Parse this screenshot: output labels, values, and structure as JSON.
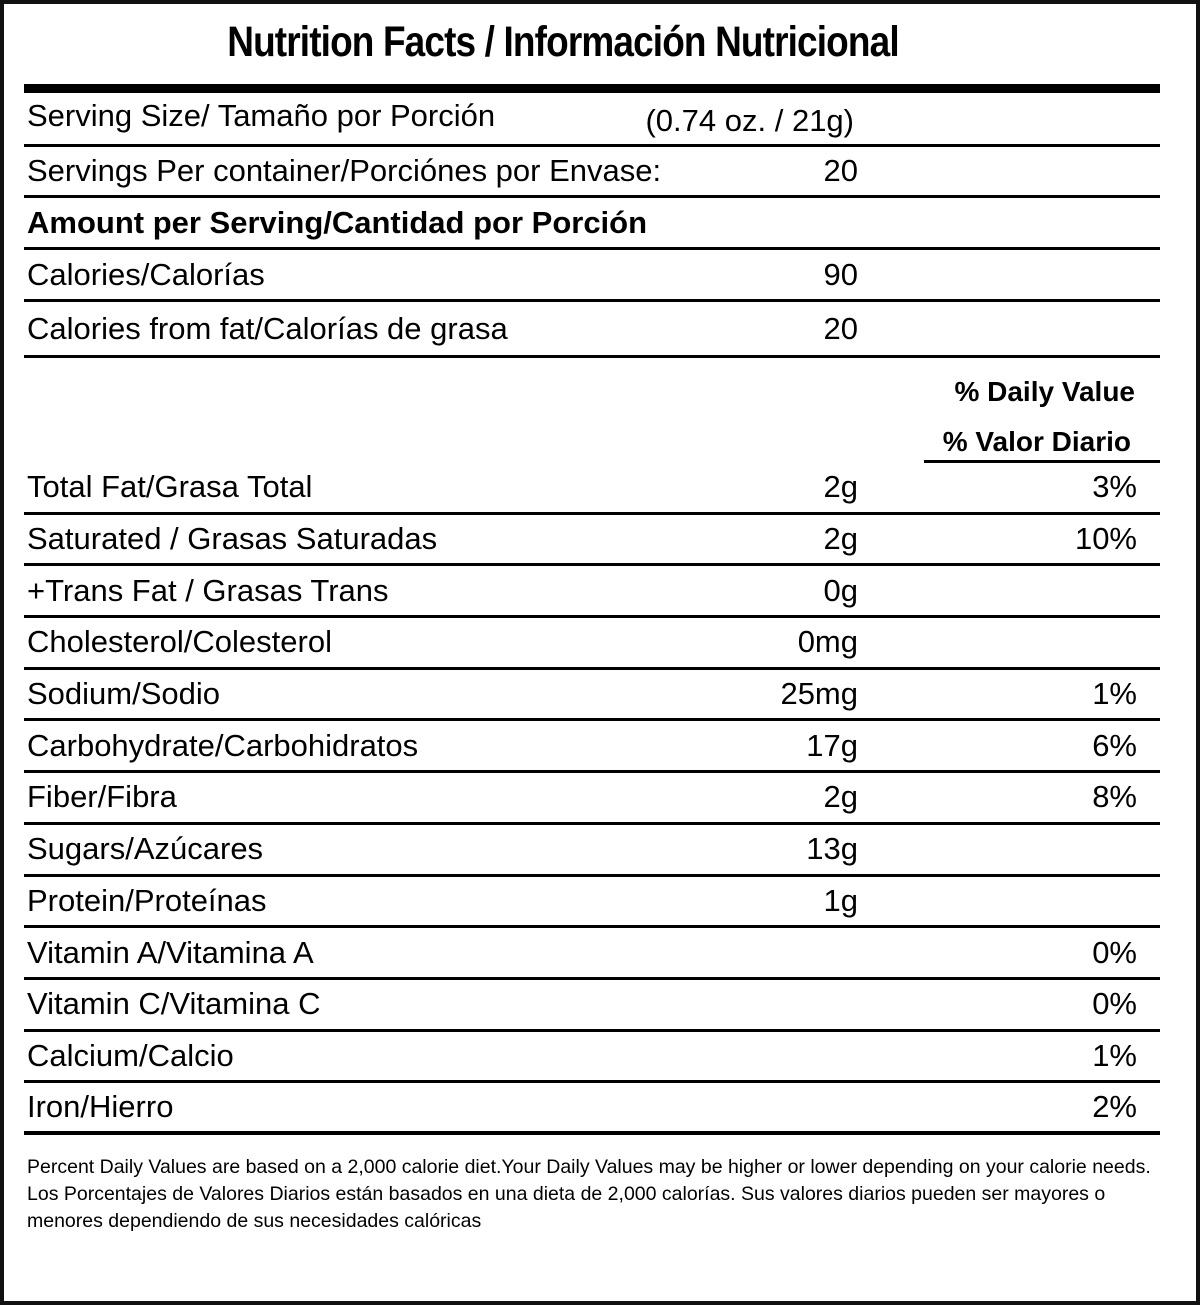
{
  "title": "Nutrition Facts / Información Nutricional",
  "serving_size": {
    "label": "Serving Size/ Tamaño por Porción",
    "value": "(0.74 oz. / 21g)"
  },
  "servings_per_container": {
    "label": "Servings Per container/Porciónes por Envase:",
    "value": "20"
  },
  "amount_per_serving": "Amount per Serving/Cantidad por Porción",
  "calories": {
    "label": "Calories/Calorías",
    "value": "90"
  },
  "calories_from_fat": {
    "label": "Calories from fat/Calorías de grasa",
    "value": "20"
  },
  "daily_value_header": {
    "en": "% Daily Value",
    "es": "% Valor Diario"
  },
  "nutrients": [
    {
      "label": "Total Fat/Grasa Total",
      "amount": "2g",
      "dv": "3%"
    },
    {
      "label": " Saturated / Grasas Saturadas",
      "amount": "2g",
      "dv": "10%"
    },
    {
      "label": "+Trans Fat / Grasas Trans",
      "amount": "0g",
      "dv": ""
    },
    {
      "label": "Cholesterol/Colesterol",
      "amount": "0mg",
      "dv": ""
    },
    {
      "label": "Sodium/Sodio",
      "amount": "25mg",
      "dv": "1%"
    },
    {
      "label": "Carbohydrate/Carbohidratos",
      "amount": "17g",
      "dv": "6%"
    },
    {
      "label": "Fiber/Fibra",
      "amount": "2g",
      "dv": "8%"
    },
    {
      "label": "Sugars/Azúcares",
      "amount": "13g",
      "dv": ""
    },
    {
      "label": "Protein/Proteínas",
      "amount": "1g",
      "dv": ""
    },
    {
      "label": "Vitamin A/Vitamina A",
      "amount": "",
      "dv": "0%"
    },
    {
      "label": "Vitamin C/Vitamina C",
      "amount": "",
      "dv": "0%"
    },
    {
      "label": "Calcium/Calcio",
      "amount": "",
      "dv": "1%"
    },
    {
      "label": "Iron/Hierro",
      "amount": "",
      "dv": "2%"
    }
  ],
  "footer": {
    "en": "Percent Daily Values are based on a 2,000 calorie diet.Your Daily Values may be higher or lower depending on your calorie needs.",
    "es": "Los Porcentajes de Valores Diarios están basados en una dieta de 2,000 calorías. Sus valores diarios pueden ser mayores o menores dependiendo de sus necesidades calóricas"
  }
}
